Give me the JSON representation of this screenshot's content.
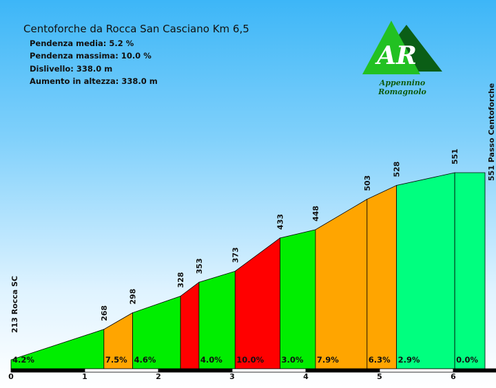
{
  "header": {
    "title": "Centoforche da Rocca San Casciano Km 6,5",
    "stats": [
      "Pendenza media: 5.2 %",
      "Pendenza massima: 10.0 %",
      "Dislivello: 338.0 m",
      "Aumento in altezza: 338.0 m"
    ]
  },
  "logo": {
    "mark": "AR",
    "caption": "Appennino Romagnolo"
  },
  "chart_data": {
    "type": "area",
    "title": "Centoforche da Rocca San Casciano Km 6,5",
    "xlabel": "",
    "ylabel": "",
    "xlim": [
      0,
      6.5
    ],
    "x_ticks": [
      "0",
      "1",
      "2",
      "3",
      "4",
      "5",
      "6"
    ],
    "start_label": "213 Rocca SC",
    "end_label": "551 Passo Centoforche",
    "points": [
      {
        "x": 0.0,
        "y": 213
      },
      {
        "x": 1.26,
        "y": 268
      },
      {
        "x": 1.65,
        "y": 298
      },
      {
        "x": 2.3,
        "y": 328
      },
      {
        "x": 2.55,
        "y": 353
      },
      {
        "x": 3.04,
        "y": 373
      },
      {
        "x": 3.65,
        "y": 433
      },
      {
        "x": 4.13,
        "y": 448
      },
      {
        "x": 4.83,
        "y": 503
      },
      {
        "x": 5.23,
        "y": 528
      },
      {
        "x": 6.02,
        "y": 551
      },
      {
        "x": 6.43,
        "y": 551
      }
    ],
    "point_labels": [
      "268",
      "298",
      "328",
      "353",
      "373",
      "433",
      "448",
      "503",
      "528",
      "551"
    ],
    "segments": [
      {
        "from": 0.0,
        "to": 1.26,
        "grade": "4.2%",
        "color": "#00ee00"
      },
      {
        "from": 1.26,
        "to": 1.65,
        "grade": "7.5%",
        "color": "#ffa500"
      },
      {
        "from": 1.65,
        "to": 2.3,
        "grade": "4.6%",
        "color": "#00ee00"
      },
      {
        "from": 2.3,
        "to": 2.55,
        "grade": "",
        "color": "#ff0000"
      },
      {
        "from": 2.55,
        "to": 3.04,
        "grade": "4.0%",
        "color": "#00ee00"
      },
      {
        "from": 3.04,
        "to": 3.65,
        "grade": "10.0%",
        "color": "#ff0000"
      },
      {
        "from": 3.65,
        "to": 4.13,
        "grade": "3.0%",
        "color": "#00ee00"
      },
      {
        "from": 4.13,
        "to": 4.83,
        "grade": "7.9%",
        "color": "#ffa500"
      },
      {
        "from": 4.83,
        "to": 5.23,
        "grade": "6.3%",
        "color": "#ffa500"
      },
      {
        "from": 5.23,
        "to": 6.02,
        "grade": "2.9%",
        "color": "#00ff7f"
      },
      {
        "from": 6.02,
        "to": 6.43,
        "grade": "0.0%",
        "color": "#00ff7f"
      }
    ]
  }
}
